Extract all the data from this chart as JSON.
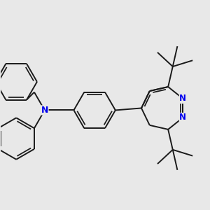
{
  "bg_color": "#e8e8e8",
  "bond_color": "#1a1a1a",
  "N_color": "#0000ee",
  "bond_width": 1.4,
  "figsize": [
    3.0,
    3.0
  ],
  "dpi": 100,
  "xlim": [
    -4.5,
    5.5
  ],
  "ylim": [
    -4.0,
    4.5
  ]
}
